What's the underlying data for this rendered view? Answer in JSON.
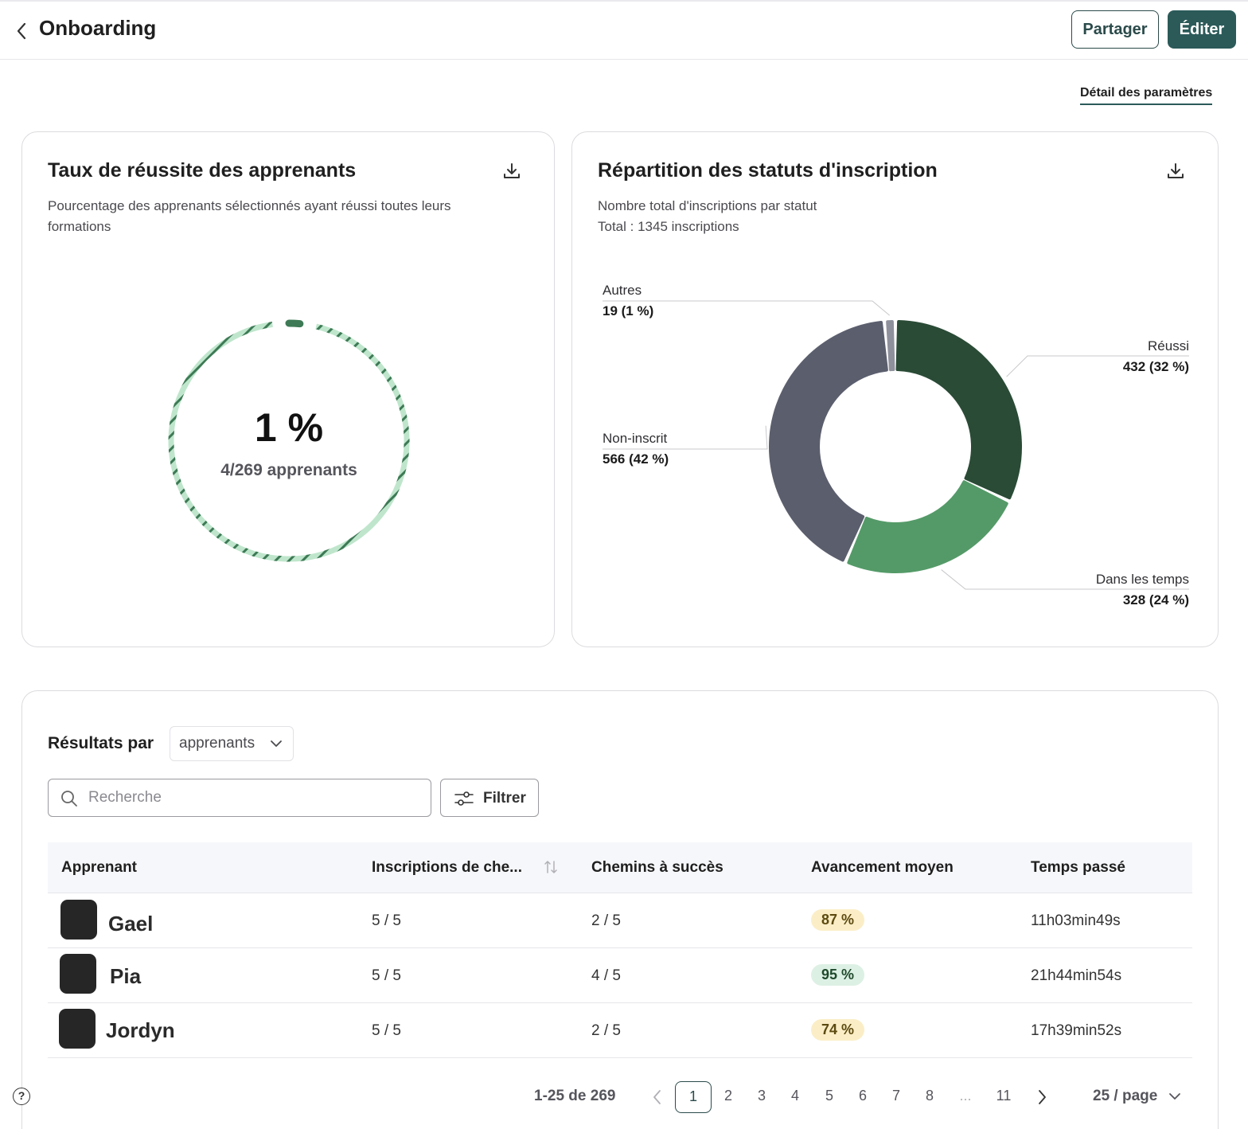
{
  "header": {
    "title": "Onboarding",
    "share_label": "Partager",
    "edit_label": "Éditer"
  },
  "settings_link": "Détail des paramètres",
  "success_card": {
    "title": "Taux de réussite des apprenants",
    "subtitle_line1": "Pourcentage des apprenants sélectionnés ayant réussi toutes leurs",
    "subtitle_line2": "formations",
    "value": "1 %",
    "detail": "4/269 apprenants",
    "progress_fraction": 0.0149
  },
  "status_card": {
    "title": "Répartition des statuts d'inscription",
    "subtitle": "Nombre total d'inscriptions par statut",
    "total": "Total : 1345 inscriptions"
  },
  "chart_data": {
    "type": "pie",
    "title": "Répartition des statuts d'inscription",
    "total": 1345,
    "slices": [
      {
        "name": "Réussi",
        "value": 432,
        "label": "432 (32 %)",
        "color": "#2a4b36"
      },
      {
        "name": "Dans les temps",
        "value": 328,
        "label": "328 (24 %)",
        "color": "#549a68"
      },
      {
        "name": "Non-inscrit",
        "value": 566,
        "label": "566 (42 %)",
        "color": "#5b5e6d"
      },
      {
        "name": "Autres",
        "value": 19,
        "label": "19 (1 %)",
        "color": "#8e909c"
      }
    ]
  },
  "results": {
    "label": "Résultats par",
    "group_by": "apprenants",
    "search_placeholder": "Recherche",
    "filter_label": "Filtrer",
    "columns": [
      "Apprenant",
      "Inscriptions de che...",
      "Chemins à succès",
      "Avancement moyen",
      "Temps passé"
    ],
    "rows": [
      {
        "name": "Gael",
        "enrollments": "5 / 5",
        "success_paths": "2 / 5",
        "progress": "87 %",
        "time": "11h03min49s"
      },
      {
        "name": "Pia",
        "enrollments": "5 / 5",
        "success_paths": "4 / 5",
        "progress": "95 %",
        "time": "21h44min54s"
      },
      {
        "name": "Jordyn",
        "enrollments": "5 / 5",
        "success_paths": "2 / 5",
        "progress": "74 %",
        "time": "17h39min52s"
      }
    ]
  },
  "pagination": {
    "range": "1-25 de 269",
    "pages": [
      "1",
      "2",
      "3",
      "4",
      "5",
      "6",
      "7",
      "8",
      "...",
      "11"
    ],
    "current": "1",
    "per_page": "25 / page"
  },
  "colors": {
    "accent": "#2b5a59",
    "ring_light": "#bfe6cc",
    "ring_dark": "#3d7a55",
    "badge_warn": "#fbeec7",
    "badge_ok": "#ddf0e4"
  },
  "icons": [
    "chevron-left-icon",
    "download-icon",
    "chevron-down-icon",
    "search-icon",
    "filter-icon",
    "sort-icon",
    "chevron-right-icon",
    "help-icon"
  ]
}
